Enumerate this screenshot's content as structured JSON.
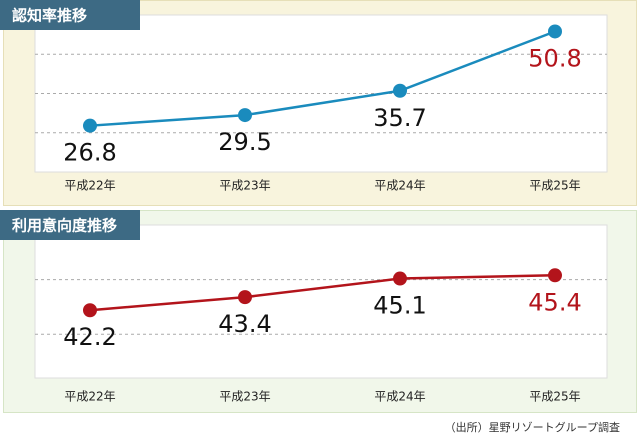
{
  "chart_data": [
    {
      "type": "line",
      "title": "認知率推移",
      "categories": [
        "平成22年",
        "平成23年",
        "平成24年",
        "平成25年"
      ],
      "series": [
        {
          "color": "#1a8bbd",
          "values": [
            26.8,
            29.5,
            35.7,
            50.8
          ],
          "value_label_colors": [
            "#111111",
            "#111111",
            "#111111",
            "#b3141b"
          ]
        }
      ],
      "ylim": [
        15,
        55
      ],
      "yticks": [
        25,
        35,
        45
      ],
      "grid": true
    },
    {
      "type": "line",
      "title": "利用意向度推移",
      "categories": [
        "平成22年",
        "平成23年",
        "平成24年",
        "平成25年"
      ],
      "series": [
        {
          "color": "#b3141b",
          "values": [
            42.2,
            43.4,
            45.1,
            45.4
          ],
          "value_label_colors": [
            "#111111",
            "#111111",
            "#111111",
            "#b3141b"
          ]
        }
      ],
      "ylim": [
        36,
        50
      ],
      "yticks": [
        40,
        45
      ],
      "grid": true
    }
  ],
  "source": "（出所）星野リゾートグループ調査"
}
